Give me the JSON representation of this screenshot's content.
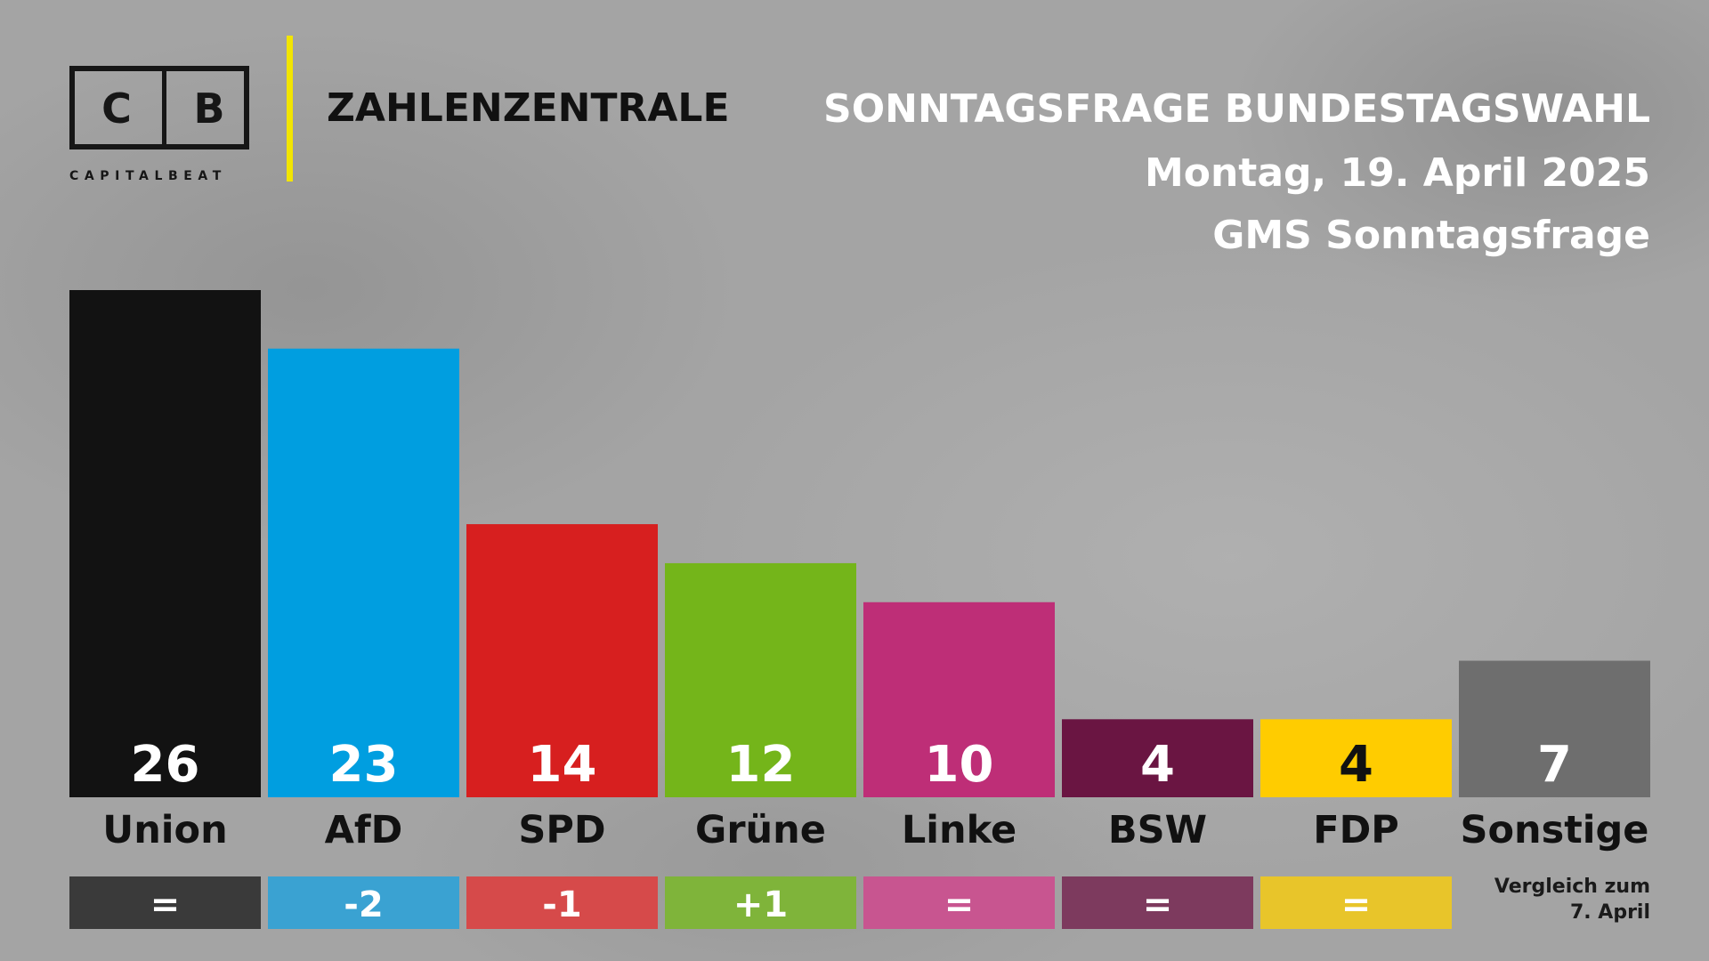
{
  "logo": {
    "letter_left": "C",
    "letter_right": "B",
    "subtitle": "CAPITALBEAT"
  },
  "brand": {
    "name": "ZAHLENZENTRALE",
    "accent_color": "#f2e500"
  },
  "header": {
    "title": "SONNTAGSFRAGE BUNDESTAGSWAHL",
    "date": "Montag, 19. April 2025",
    "source": "GMS Sonntagsfrage"
  },
  "note": {
    "line1": "Vergleich zum",
    "line2": "7. April"
  },
  "chart_data": {
    "type": "bar",
    "categories": [
      "Union",
      "AfD",
      "SPD",
      "Grüne",
      "Linke",
      "BSW",
      "FDP",
      "Sonstige"
    ],
    "values": [
      26,
      23,
      14,
      12,
      10,
      4,
      4,
      7
    ],
    "changes": [
      "=",
      "-2",
      "-1",
      "+1",
      "=",
      "=",
      "=",
      ""
    ],
    "colors": [
      "#121212",
      "#009ee0",
      "#d71f1f",
      "#74b51a",
      "#be2e77",
      "#6a1542",
      "#ffcc00",
      "#6e6e6e"
    ],
    "change_colors": [
      "#3a3a3a",
      "#3aa2d2",
      "#d64a4a",
      "#7fb43a",
      "#c85590",
      "#7d3a5e",
      "#e8c52a",
      ""
    ],
    "value_text_colors": [
      "#ffffff",
      "#ffffff",
      "#ffffff",
      "#ffffff",
      "#ffffff",
      "#ffffff",
      "#111111",
      "#ffffff"
    ],
    "ylim": [
      0,
      26
    ],
    "grid": false,
    "title": "SONNTAGSFRAGE BUNDESTAGSWAHL",
    "xlabel": "",
    "ylabel": ""
  }
}
